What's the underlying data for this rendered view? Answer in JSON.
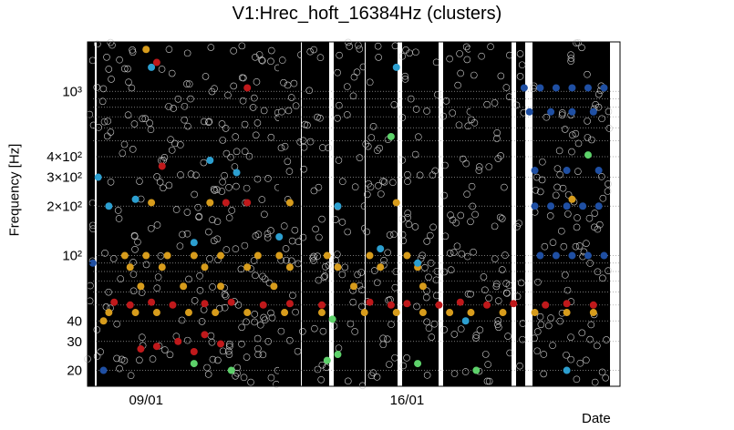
{
  "chart_data": {
    "type": "scatter",
    "title": "V1:Hrec_hoft_16384Hz (clusters)",
    "xlabel": "Date",
    "ylabel": "Frequency [Hz]",
    "yscale": "log",
    "ylim": [
      16,
      2000
    ],
    "y_ticks": [
      {
        "value": 20,
        "label": "20"
      },
      {
        "value": 30,
        "label": "30"
      },
      {
        "value": 40,
        "label": "40"
      },
      {
        "value": 100,
        "label": "10²"
      },
      {
        "value": 200,
        "label": "2×10²"
      },
      {
        "value": 300,
        "label": "3×10²"
      },
      {
        "value": 400,
        "label": "4×10²"
      },
      {
        "value": 1000,
        "label": "10³"
      }
    ],
    "x_ticks": [
      {
        "value": "09/01",
        "label": "09/01"
      },
      {
        "value": "16/01",
        "label": "16/01"
      }
    ],
    "grid": true,
    "marker_colors": {
      "background": "#000000",
      "red": "#c0191b",
      "orange": "#d79c1c",
      "blue": "#1f4fa3",
      "cyan": "#2c9fd0",
      "green": "#5dd16a"
    },
    "series": [
      {
        "color": "#c0191b",
        "values": [
          [
            0.05,
            52
          ],
          [
            0.08,
            50
          ],
          [
            0.12,
            52
          ],
          [
            0.16,
            50
          ],
          [
            0.22,
            51
          ],
          [
            0.27,
            52
          ],
          [
            0.33,
            50
          ],
          [
            0.38,
            51
          ],
          [
            0.44,
            50
          ],
          [
            0.53,
            52
          ],
          [
            0.57,
            50
          ],
          [
            0.6,
            51
          ],
          [
            0.66,
            50
          ],
          [
            0.7,
            52
          ],
          [
            0.75,
            50
          ],
          [
            0.8,
            51
          ],
          [
            0.86,
            50
          ],
          [
            0.9,
            51
          ],
          [
            0.95,
            50
          ],
          [
            0.1,
            27
          ],
          [
            0.13,
            28
          ],
          [
            0.17,
            30
          ],
          [
            0.2,
            26
          ],
          [
            0.22,
            33
          ],
          [
            0.25,
            29
          ],
          [
            0.14,
            350
          ],
          [
            0.26,
            210
          ],
          [
            0.3,
            210
          ],
          [
            0.13,
            1500
          ],
          [
            0.3,
            1050
          ]
        ]
      },
      {
        "color": "#d79c1c",
        "values": [
          [
            0.04,
            45
          ],
          [
            0.09,
            45
          ],
          [
            0.13,
            45
          ],
          [
            0.19,
            45
          ],
          [
            0.24,
            45
          ],
          [
            0.3,
            45
          ],
          [
            0.37,
            45
          ],
          [
            0.44,
            45
          ],
          [
            0.52,
            45
          ],
          [
            0.58,
            45
          ],
          [
            0.63,
            45
          ],
          [
            0.68,
            45
          ],
          [
            0.72,
            45
          ],
          [
            0.78,
            45
          ],
          [
            0.84,
            45
          ],
          [
            0.9,
            45
          ],
          [
            0.95,
            45
          ],
          [
            0.07,
            100
          ],
          [
            0.11,
            100
          ],
          [
            0.15,
            100
          ],
          [
            0.2,
            100
          ],
          [
            0.25,
            100
          ],
          [
            0.32,
            100
          ],
          [
            0.36,
            100
          ],
          [
            0.45,
            100
          ],
          [
            0.53,
            100
          ],
          [
            0.6,
            100
          ],
          [
            0.08,
            85
          ],
          [
            0.14,
            85
          ],
          [
            0.22,
            85
          ],
          [
            0.3,
            85
          ],
          [
            0.38,
            85
          ],
          [
            0.47,
            85
          ],
          [
            0.55,
            85
          ],
          [
            0.62,
            85
          ],
          [
            0.1,
            65
          ],
          [
            0.18,
            65
          ],
          [
            0.25,
            65
          ],
          [
            0.35,
            65
          ],
          [
            0.5,
            65
          ],
          [
            0.63,
            65
          ],
          [
            0.12,
            210
          ],
          [
            0.23,
            210
          ],
          [
            0.38,
            210
          ],
          [
            0.58,
            210
          ],
          [
            0.11,
            1800
          ],
          [
            0.03,
            40
          ],
          [
            0.91,
            220
          ]
        ]
      },
      {
        "color": "#1f4fa3",
        "values": [
          [
            0.82,
            1050
          ],
          [
            0.85,
            1050
          ],
          [
            0.88,
            1050
          ],
          [
            0.91,
            1050
          ],
          [
            0.94,
            1050
          ],
          [
            0.97,
            1050
          ],
          [
            0.83,
            750
          ],
          [
            0.87,
            750
          ],
          [
            0.91,
            750
          ],
          [
            0.95,
            750
          ],
          [
            0.84,
            200
          ],
          [
            0.87,
            200
          ],
          [
            0.9,
            200
          ],
          [
            0.93,
            200
          ],
          [
            0.96,
            200
          ],
          [
            0.85,
            100
          ],
          [
            0.88,
            100
          ],
          [
            0.91,
            100
          ],
          [
            0.94,
            100
          ],
          [
            0.97,
            100
          ],
          [
            0.84,
            330
          ],
          [
            0.9,
            330
          ],
          [
            0.96,
            330
          ],
          [
            0.01,
            90
          ],
          [
            0.03,
            20
          ]
        ]
      },
      {
        "color": "#2c9fd0",
        "values": [
          [
            0.02,
            300
          ],
          [
            0.04,
            200
          ],
          [
            0.09,
            220
          ],
          [
            0.12,
            1400
          ],
          [
            0.2,
            120
          ],
          [
            0.23,
            380
          ],
          [
            0.28,
            320
          ],
          [
            0.36,
            130
          ],
          [
            0.47,
            200
          ],
          [
            0.55,
            110
          ],
          [
            0.58,
            1400
          ],
          [
            0.62,
            90
          ],
          [
            0.71,
            40
          ],
          [
            0.9,
            20
          ]
        ]
      },
      {
        "color": "#5dd16a",
        "values": [
          [
            0.2,
            22
          ],
          [
            0.27,
            20
          ],
          [
            0.45,
            23
          ],
          [
            0.46,
            41
          ],
          [
            0.47,
            25
          ],
          [
            0.57,
            530
          ],
          [
            0.62,
            22
          ],
          [
            0.73,
            20
          ],
          [
            0.94,
            410
          ]
        ]
      }
    ]
  }
}
